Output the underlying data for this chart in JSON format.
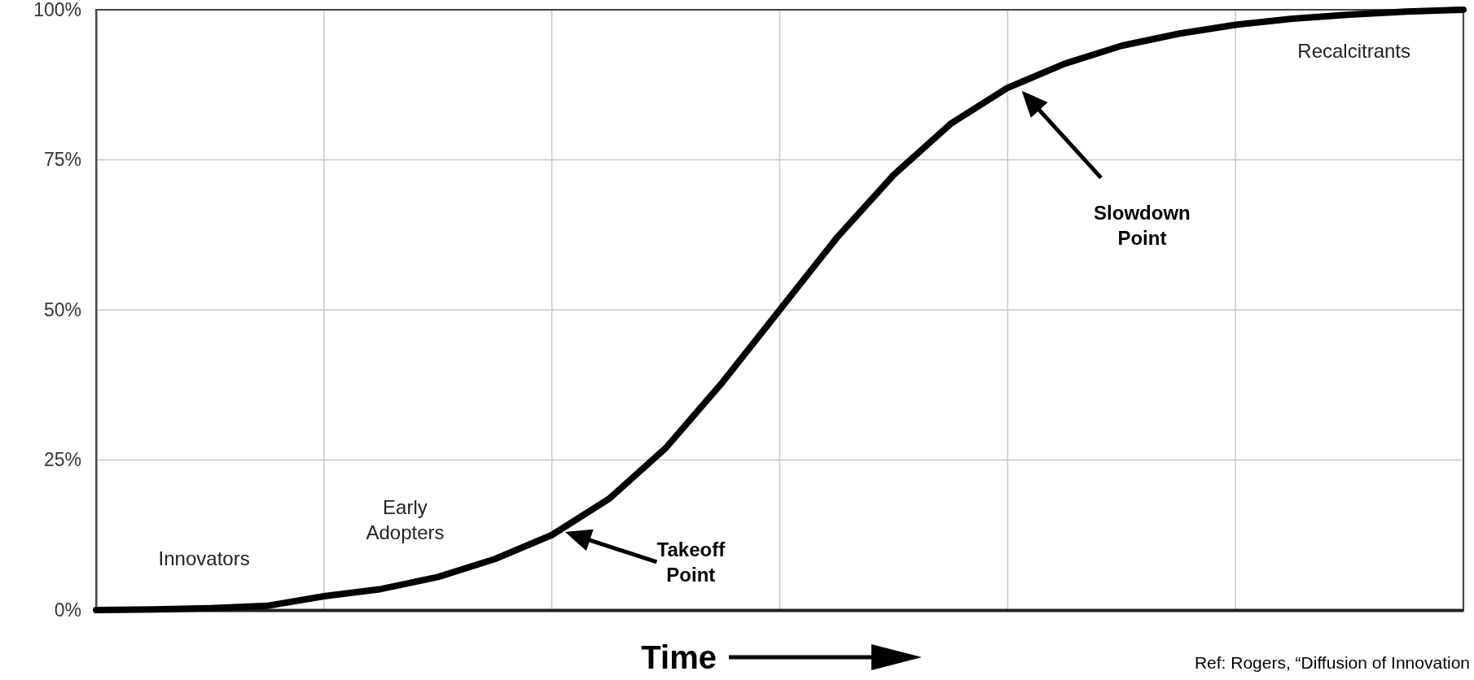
{
  "chart_data": {
    "type": "line",
    "xlabel": "Time",
    "categories": [
      null,
      null,
      null,
      null,
      null,
      null,
      null,
      null,
      null,
      null,
      null,
      null,
      null,
      null,
      null,
      null,
      null,
      null,
      null,
      null,
      null,
      null,
      null,
      null,
      null
    ],
    "series": [
      {
        "color": "#000000",
        "values": [
          0,
          0.1,
          0.3,
          0.7,
          2.3,
          3.5,
          5.5,
          8.5,
          12.5,
          18.5,
          27,
          38,
          50,
          62,
          72.5,
          81,
          87,
          91,
          94,
          96,
          97.5,
          98.5,
          99.2,
          99.7,
          100
        ]
      }
    ],
    "ylim": [
      0,
      100
    ],
    "yticks": [
      {
        "value": 0,
        "label": "0%"
      },
      {
        "value": 25,
        "label": "25%"
      },
      {
        "value": 50,
        "label": "50%"
      },
      {
        "value": 75,
        "label": "75%"
      },
      {
        "value": 100,
        "label": "100%"
      }
    ],
    "grid": true,
    "marker": "none",
    "line_style": "solid",
    "annotations": [
      "Innovators",
      "Early Adopters",
      "Recalcitrants",
      "Takeoff Point",
      "Slowdown Point",
      "Ref: Rogers, “Diffusion of Innovation"
    ]
  }
}
